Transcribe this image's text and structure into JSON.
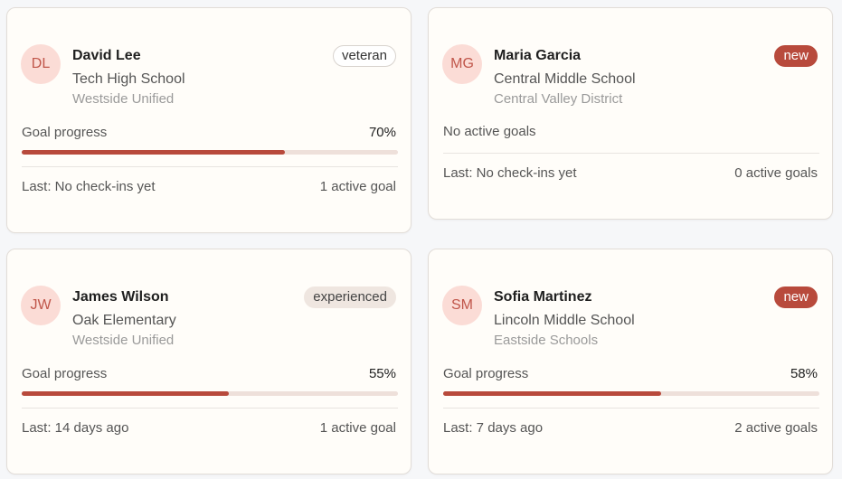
{
  "cards": [
    {
      "initials": "DL",
      "name": "David Lee",
      "school": "Tech High School",
      "district": "Westside Unified",
      "badge": {
        "text": "veteran",
        "fill": "#ffffff",
        "text_color": "#333333",
        "border": "#d8d3ce"
      },
      "progress_title": "Goal progress",
      "progress": {
        "value": 70,
        "label": "70%"
      },
      "last": "Last: No check-ins yet",
      "active": "1 active goal"
    },
    {
      "initials": "MG",
      "name": "Maria Garcia",
      "school": "Central Middle School",
      "district": "Central Valley District",
      "badge": {
        "text": "new",
        "fill": "#b84a3c",
        "text_color": "#ffffff",
        "border": "#b84a3c"
      },
      "no_goals": "No active goals",
      "last": "Last: No check-ins yet",
      "active": "0 active goals"
    },
    {
      "initials": "JW",
      "name": "James Wilson",
      "school": "Oak Elementary",
      "district": "Westside Unified",
      "badge": {
        "text": "experienced",
        "fill": "#efe6e0",
        "text_color": "#444444",
        "border": "#efe6e0"
      },
      "progress_title": "Goal progress",
      "progress": {
        "value": 55,
        "label": "55%"
      },
      "last": "Last: 14 days ago",
      "active": "1 active goal"
    },
    {
      "initials": "SM",
      "name": "Sofia Martinez",
      "school": "Lincoln Middle School",
      "district": "Eastside Schools",
      "badge": {
        "text": "new",
        "fill": "#b84a3c",
        "text_color": "#ffffff",
        "border": "#b84a3c"
      },
      "progress_title": "Goal progress",
      "progress": {
        "value": 58,
        "label": "58%"
      },
      "last": "Last: 7 days ago",
      "active": "2 active goals"
    }
  ]
}
